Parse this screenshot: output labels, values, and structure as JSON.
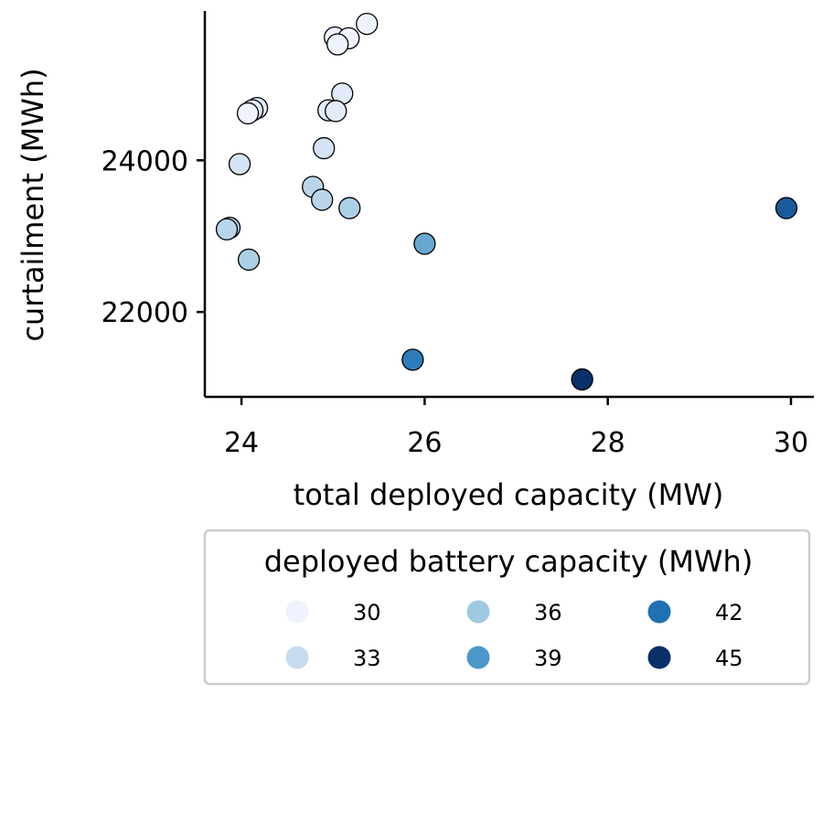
{
  "chart_data": {
    "type": "scatter",
    "title": "",
    "xlabel": "total deployed capacity (MW)",
    "ylabel": "curtailment (MWh)",
    "xlim": [
      23.6,
      30.25
    ],
    "ylim": [
      20880,
      25970
    ],
    "xticks": [
      24,
      26,
      28,
      30
    ],
    "yticks": [
      22000,
      24000
    ],
    "grid": false,
    "legend": {
      "title": "deployed battery capacity (MWh)",
      "placement": "below",
      "entries": [
        {
          "label": "30",
          "value": 30
        },
        {
          "label": "33",
          "value": 33
        },
        {
          "label": "36",
          "value": 36
        },
        {
          "label": "39",
          "value": 39
        },
        {
          "label": "42",
          "value": 42
        },
        {
          "label": "45",
          "value": 45
        }
      ]
    },
    "color_scale": {
      "min": 30,
      "max": 45,
      "stops": [
        "#eff3ff",
        "#c6dbef",
        "#9ecae1",
        "#4a97c9",
        "#2070b4",
        "#08306b"
      ]
    },
    "points": [
      {
        "x": 25.37,
        "y": 25800,
        "c": 30
      },
      {
        "x": 25.02,
        "y": 25620,
        "c": 30
      },
      {
        "x": 25.17,
        "y": 25610,
        "c": 30
      },
      {
        "x": 25.05,
        "y": 25530,
        "c": 30
      },
      {
        "x": 24.17,
        "y": 24690,
        "c": 31
      },
      {
        "x": 24.12,
        "y": 24660,
        "c": 31
      },
      {
        "x": 24.07,
        "y": 24620,
        "c": 30
      },
      {
        "x": 25.1,
        "y": 24880,
        "c": 31
      },
      {
        "x": 24.95,
        "y": 24660,
        "c": 31
      },
      {
        "x": 25.03,
        "y": 24650,
        "c": 31
      },
      {
        "x": 24.9,
        "y": 24160,
        "c": 32
      },
      {
        "x": 23.98,
        "y": 23950,
        "c": 32
      },
      {
        "x": 24.78,
        "y": 23650,
        "c": 34
      },
      {
        "x": 24.88,
        "y": 23480,
        "c": 34
      },
      {
        "x": 25.18,
        "y": 23370,
        "c": 35
      },
      {
        "x": 23.87,
        "y": 23110,
        "c": 34
      },
      {
        "x": 23.84,
        "y": 23090,
        "c": 34
      },
      {
        "x": 24.08,
        "y": 22690,
        "c": 35
      },
      {
        "x": 26.0,
        "y": 22900,
        "c": 38
      },
      {
        "x": 29.95,
        "y": 23370,
        "c": 43
      },
      {
        "x": 25.87,
        "y": 21370,
        "c": 41
      },
      {
        "x": 27.72,
        "y": 21110,
        "c": 45
      }
    ]
  }
}
